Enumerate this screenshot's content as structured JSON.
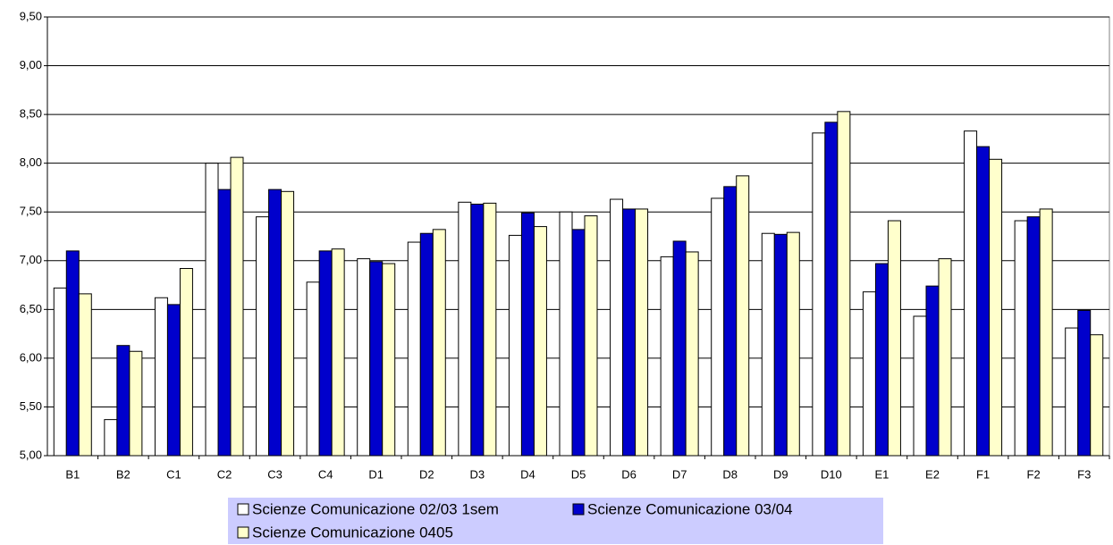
{
  "chart_data": {
    "type": "bar",
    "categories": [
      "B1",
      "B2",
      "C1",
      "C2",
      "C3",
      "C4",
      "D1",
      "D2",
      "D3",
      "D4",
      "D5",
      "D6",
      "D7",
      "D8",
      "D9",
      "D10",
      "E1",
      "E2",
      "F1",
      "F2",
      "F3"
    ],
    "series": [
      {
        "name": "Scienze Comunicazione 02/03 1sem",
        "color": "#ffffff",
        "values": [
          6.72,
          5.37,
          6.62,
          8.0,
          7.45,
          6.78,
          7.02,
          7.19,
          7.6,
          7.26,
          7.5,
          7.63,
          7.04,
          7.64,
          7.28,
          8.31,
          6.68,
          6.43,
          8.33,
          7.41,
          6.31
        ]
      },
      {
        "name": "Scienze Comunicazione 03/04",
        "color": "#0000cc",
        "values": [
          7.1,
          6.13,
          6.55,
          7.73,
          7.73,
          7.1,
          6.99,
          7.28,
          7.58,
          7.49,
          7.32,
          7.53,
          7.2,
          7.76,
          7.27,
          8.42,
          6.97,
          6.74,
          8.17,
          7.45,
          6.49
        ]
      },
      {
        "name": "Scienze Comunicazione 0405",
        "color": "#ffffcc",
        "values": [
          6.66,
          6.07,
          6.92,
          8.06,
          7.71,
          7.12,
          6.97,
          7.32,
          7.59,
          7.35,
          7.46,
          7.53,
          7.09,
          7.87,
          7.29,
          8.53,
          7.41,
          7.02,
          8.04,
          7.53,
          6.24
        ]
      }
    ],
    "ylim": [
      5,
      9.5
    ],
    "yticks": [
      {
        "value": 5,
        "label": "5,00"
      },
      {
        "value": 5.5,
        "label": "5,50"
      },
      {
        "value": 6,
        "label": "6,00"
      },
      {
        "value": 6.5,
        "label": "6,50"
      },
      {
        "value": 7,
        "label": "7,00"
      },
      {
        "value": 7.5,
        "label": "7,50"
      },
      {
        "value": 8,
        "label": "8,00"
      },
      {
        "value": 8.5,
        "label": "8,50"
      },
      {
        "value": 9,
        "label": "9,00"
      },
      {
        "value": 9.5,
        "label": "9,50"
      }
    ],
    "grid": true,
    "legend": "bottom",
    "legend_color": "#ccccff"
  }
}
